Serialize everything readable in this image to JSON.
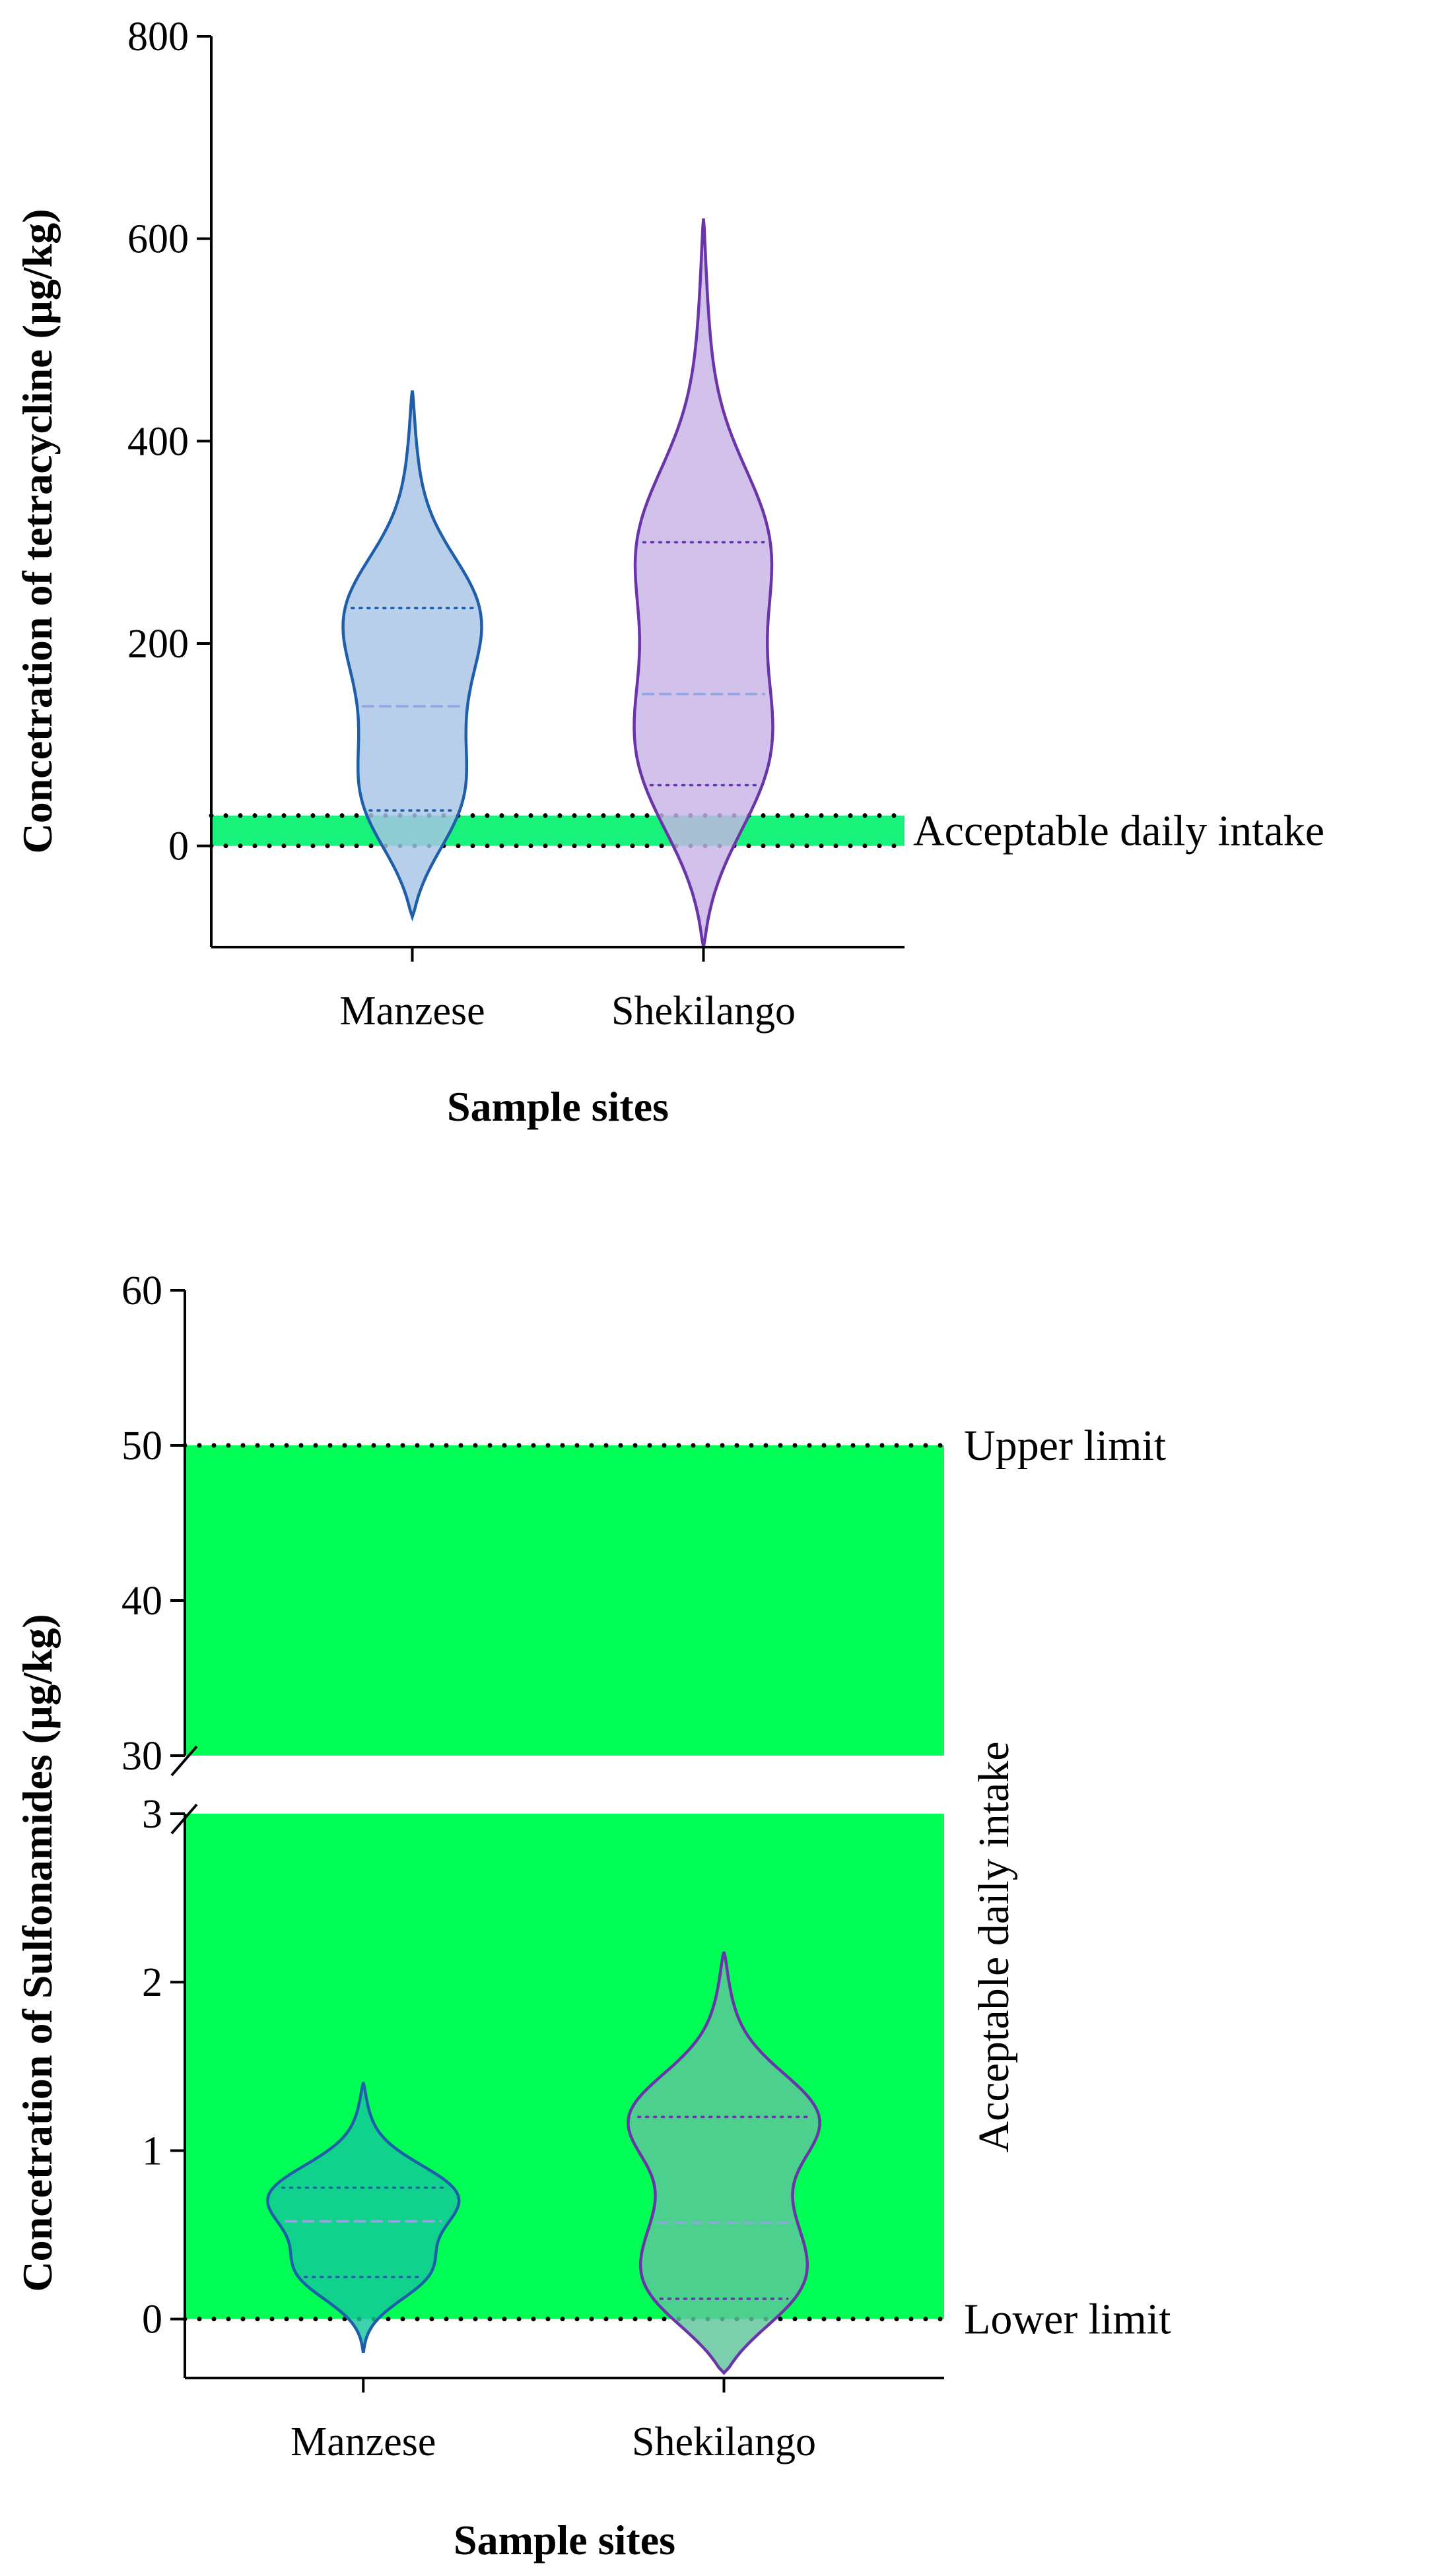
{
  "chart_data": [
    {
      "type": "violin",
      "title": "",
      "xlabel": "Sample sites",
      "ylabel": "Concetration of tetracycline (µg/kg)",
      "categories": [
        "Manzese",
        "Shekilango"
      ],
      "ylim": [
        -100,
        800
      ],
      "yticks": [
        "0",
        "200",
        "400",
        "600",
        "800"
      ],
      "band": {
        "from": 0,
        "to": 30,
        "label": "Acceptable daily intake",
        "color": "#19f27a"
      },
      "series": [
        {
          "category": "Manzese",
          "color": "#1f5ea8",
          "fill": "#a8c5e8",
          "range": [
            -70,
            450
          ],
          "quartiles": [
            35,
            138,
            235
          ],
          "median": 138
        },
        {
          "category": "Shekilango",
          "color": "#6a35a8",
          "fill": "#c8b4e6",
          "range": [
            -100,
            620
          ],
          "quartiles": [
            60,
            150,
            300
          ],
          "median": 150
        }
      ]
    },
    {
      "type": "violin",
      "title": "",
      "xlabel": "Sample sites",
      "ylabel": "Concetration of Sulfonamides (µg/kg)",
      "categories": [
        "Manzese",
        "Shekilango"
      ],
      "axis_break": [
        3,
        30
      ],
      "ylim_lower": [
        -0.35,
        3
      ],
      "ylim_upper": [
        30,
        60
      ],
      "yticks_lower": [
        "0",
        "1",
        "2",
        "3"
      ],
      "yticks_upper": [
        "30",
        "40",
        "50",
        "60"
      ],
      "band": {
        "from": 0,
        "to": 50,
        "label": "Acceptable daily intake",
        "color": "#00ff55"
      },
      "reference_lines": [
        {
          "value": 50,
          "label": "Upper limit"
        },
        {
          "value": 0,
          "label": "Lower limit"
        }
      ],
      "series": [
        {
          "category": "Manzese",
          "color": "#1f5ea8",
          "fill": "#14c89a",
          "range": [
            -0.2,
            1.4
          ],
          "quartiles": [
            0.25,
            0.58,
            0.78
          ],
          "median": 0.58
        },
        {
          "category": "Shekilango",
          "color": "#6a35a8",
          "fill": "#5ec49b",
          "range": [
            -0.32,
            2.18
          ],
          "quartiles": [
            0.12,
            0.57,
            1.2
          ],
          "median": 0.57
        }
      ]
    }
  ]
}
